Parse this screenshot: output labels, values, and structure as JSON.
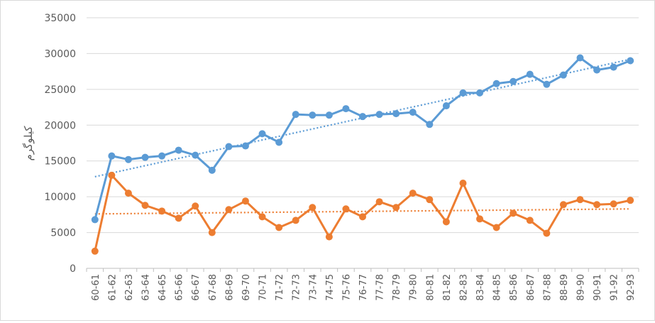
{
  "chart_data": {
    "type": "line",
    "title": "",
    "xlabel": "",
    "ylabel": "کیلوگرم",
    "ylim": [
      0,
      35000
    ],
    "yticks": [
      0,
      5000,
      10000,
      15000,
      20000,
      25000,
      30000,
      35000
    ],
    "grid": true,
    "legend": "none",
    "categories": [
      "60-61",
      "61-62",
      "62-63",
      "63-64",
      "64-65",
      "65-66",
      "66-67",
      "67-68",
      "68-69",
      "69-70",
      "70-71",
      "71-72",
      "72-73",
      "73-74",
      "74-75",
      "75-76",
      "76-77",
      "77-78",
      "78-79",
      "79-80",
      "80-81",
      "81-82",
      "82-83",
      "83-84",
      "84-85",
      "85-86",
      "86-87",
      "87-88",
      "88-89",
      "89-90",
      "90-91",
      "91-92",
      "92-93"
    ],
    "series": [
      {
        "color": "#5b9bd5",
        "values": [
          6800,
          15700,
          15200,
          15500,
          15700,
          16500,
          15800,
          13700,
          17000,
          17100,
          18800,
          17600,
          21500,
          21400,
          21400,
          22300,
          21200,
          21500,
          21600,
          21800,
          20100,
          22700,
          24500,
          24500,
          25800,
          26100,
          27100,
          25700,
          27000,
          29400,
          27700,
          28100,
          29000
        ],
        "trendline": [
          12800,
          29200
        ]
      },
      {
        "color": "#ed7d31",
        "values": [
          2400,
          13000,
          10500,
          8800,
          8000,
          7000,
          8700,
          5000,
          8200,
          9400,
          7200,
          5700,
          6700,
          8500,
          4400,
          8300,
          7200,
          9300,
          8500,
          10500,
          9600,
          6500,
          11900,
          6900,
          5700,
          7700,
          6700,
          4900,
          8900,
          9600,
          8900,
          9000,
          9500
        ],
        "trendline": [
          7600,
          8300
        ]
      }
    ]
  }
}
